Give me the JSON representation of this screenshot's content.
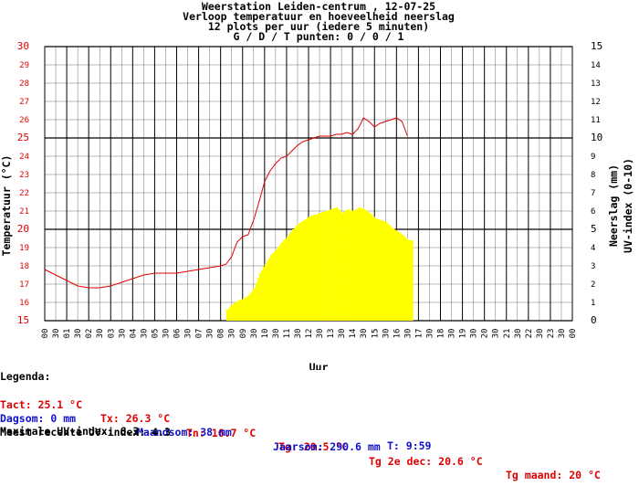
{
  "chart_data": {
    "type": "line",
    "title_lines": [
      "Weerstation Leiden-centrum , 12-07-25",
      "Verloop temperatuur en hoeveelheid neerslag",
      "12 plots per uur (iedere 5 minuten)",
      "G / D / T punten: 0 / 0 / 1"
    ],
    "xlabel": "Uur",
    "ylabel_left": "Temperatuur (°C)",
    "ylabel_right_1": "Neerslag (mm)",
    "ylabel_right_2": "UV-index (0-10)",
    "x_ticks": [
      "00",
      "30",
      "01",
      "30",
      "02",
      "30",
      "03",
      "30",
      "04",
      "30",
      "05",
      "30",
      "06",
      "30",
      "07",
      "30",
      "08",
      "30",
      "09",
      "30",
      "10",
      "30",
      "11",
      "30",
      "12",
      "30",
      "13",
      "30",
      "14",
      "30",
      "15",
      "30",
      "16",
      "30",
      "17",
      "30",
      "18",
      "30",
      "19",
      "30",
      "20",
      "30",
      "21",
      "30",
      "22",
      "30",
      "23",
      "30",
      "00"
    ],
    "x_range_hours": [
      0,
      24
    ],
    "y_left_ticks": [
      "15",
      "16",
      "17",
      "18",
      "19",
      "20",
      "21",
      "22",
      "23",
      "24",
      "25",
      "26",
      "27",
      "28",
      "29",
      "30"
    ],
    "y_left_range": [
      15,
      30
    ],
    "y_right_ticks": [
      "0",
      "1",
      "2",
      "3",
      "4",
      "5",
      "6",
      "7",
      "8",
      "9",
      "10",
      "11",
      "12",
      "13",
      "14",
      "15"
    ],
    "y_right_range": [
      0,
      15
    ],
    "grid": true,
    "series": [
      {
        "kind": "temperature",
        "color": "#e00000",
        "x": [
          0,
          0.5,
          1,
          1.5,
          2,
          2.5,
          3,
          3.5,
          4,
          4.5,
          5,
          5.5,
          6,
          6.5,
          7,
          7.5,
          8,
          8.25,
          8.5,
          8.75,
          9,
          9.25,
          9.5,
          9.75,
          10,
          10.25,
          10.5,
          10.75,
          11,
          11.25,
          11.5,
          11.75,
          12,
          12.25,
          12.5,
          12.75,
          13,
          13.25,
          13.5,
          13.75,
          14,
          14.25,
          14.5,
          14.75,
          15,
          15.25,
          15.5,
          15.75,
          16,
          16.25,
          16.5
        ],
        "y": [
          17.8,
          17.5,
          17.2,
          16.9,
          16.8,
          16.8,
          16.9,
          17.1,
          17.3,
          17.5,
          17.6,
          17.6,
          17.6,
          17.7,
          17.8,
          17.9,
          18.0,
          18.1,
          18.5,
          19.3,
          19.6,
          19.7,
          20.5,
          21.5,
          22.6,
          23.2,
          23.6,
          23.9,
          24.0,
          24.3,
          24.6,
          24.8,
          24.9,
          25.0,
          25.1,
          25.1,
          25.1,
          25.2,
          25.2,
          25.3,
          25.2,
          25.5,
          26.1,
          25.9,
          25.6,
          25.8,
          25.9,
          26.0,
          26.1,
          25.9,
          25.1
        ]
      },
      {
        "kind": "uv-index",
        "color": "#ffff00",
        "x": [
          8.25,
          8.5,
          8.75,
          9,
          9.25,
          9.5,
          9.75,
          10,
          10.25,
          10.5,
          10.75,
          11,
          11.25,
          11.5,
          11.75,
          12,
          12.25,
          12.5,
          12.75,
          13,
          13.25,
          13.5,
          13.75,
          14,
          14.25,
          14.5,
          14.75,
          15,
          15.25,
          15.5,
          15.75,
          16,
          16.25,
          16.5
        ],
        "y": [
          0.6,
          0.9,
          1.1,
          1.2,
          1.4,
          1.8,
          2.6,
          3.1,
          3.6,
          3.9,
          4.3,
          4.6,
          5.0,
          5.3,
          5.5,
          5.7,
          5.8,
          5.9,
          6.0,
          6.1,
          6.2,
          5.9,
          6.1,
          6.0,
          6.2,
          6.1,
          5.9,
          5.6,
          5.5,
          5.4,
          5.1,
          4.9,
          4.7,
          4.4
        ]
      }
    ]
  },
  "legend": {
    "header": "Legenda:",
    "tact": "Tact: 25.1 °C",
    "tx": "Tx: 26.3 °C",
    "tn": "Tn: 16.7 °C",
    "tg": "Tg: 20.5 °C",
    "tg2dec": "Tg 2e dec: 20.6 °C",
    "tgmaand": "Tg maand: 20 °C",
    "dagsom": "Dagsom: 0 mm",
    "maandsom": "Maandsom: 38 mm",
    "jaarsom": "Jaarsom: 290.6 mm",
    "uv_recent": "Meest recente UV-index: 4.3",
    "uv_time": "T: 9:59",
    "uv_max": "Maximale UV-index: 6.3"
  },
  "colors": {
    "temperature": "#e00000",
    "uv": "#ffff00",
    "rain": "#1010cc",
    "grid": "#000000"
  }
}
